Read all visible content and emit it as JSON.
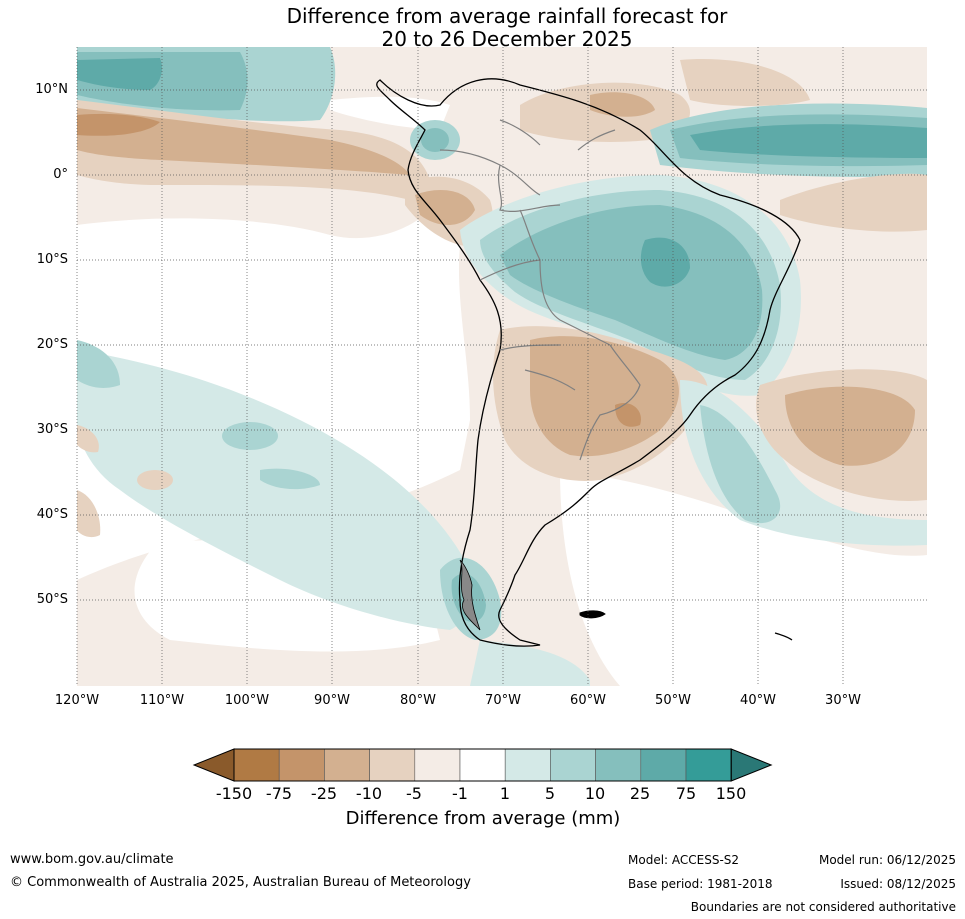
{
  "title": {
    "line1": "Difference from average rainfall forecast for",
    "line2": "20 to 26 December 2025"
  },
  "map": {
    "lat_labels": [
      "10°N",
      "0°",
      "10°S",
      "20°S",
      "30°S",
      "40°S",
      "50°S"
    ],
    "lon_labels": [
      "120°W",
      "110°W",
      "100°W",
      "90°W",
      "80°W",
      "70°W",
      "60°W",
      "50°W",
      "40°W",
      "30°W"
    ]
  },
  "colorbar": {
    "ticks": [
      "-150",
      "-75",
      "-25",
      "-10",
      "-5",
      "-1",
      "1",
      "5",
      "10",
      "25",
      "75",
      "150"
    ],
    "colors": [
      "#8a5a2b",
      "#b07a44",
      "#c4946a",
      "#d3b090",
      "#e6d2c0",
      "#f4ece6",
      "#ffffff",
      "#d4e9e7",
      "#aad4d2",
      "#85bfbd",
      "#5eaaa8",
      "#349c98",
      "#2a7876"
    ],
    "label": "Difference from average (mm)"
  },
  "footer": {
    "url": "www.bom.gov.au/climate",
    "copyright": "© Commonwealth of Australia 2025, Australian Bureau of Meteorology",
    "model": "Model: ACCESS-S2",
    "base_period": "Base period: 1981-2018",
    "model_run": "Model run: 06/12/2025",
    "issued": "Issued: 08/12/2025",
    "disclaimer": "Boundaries are not considered authoritative"
  }
}
